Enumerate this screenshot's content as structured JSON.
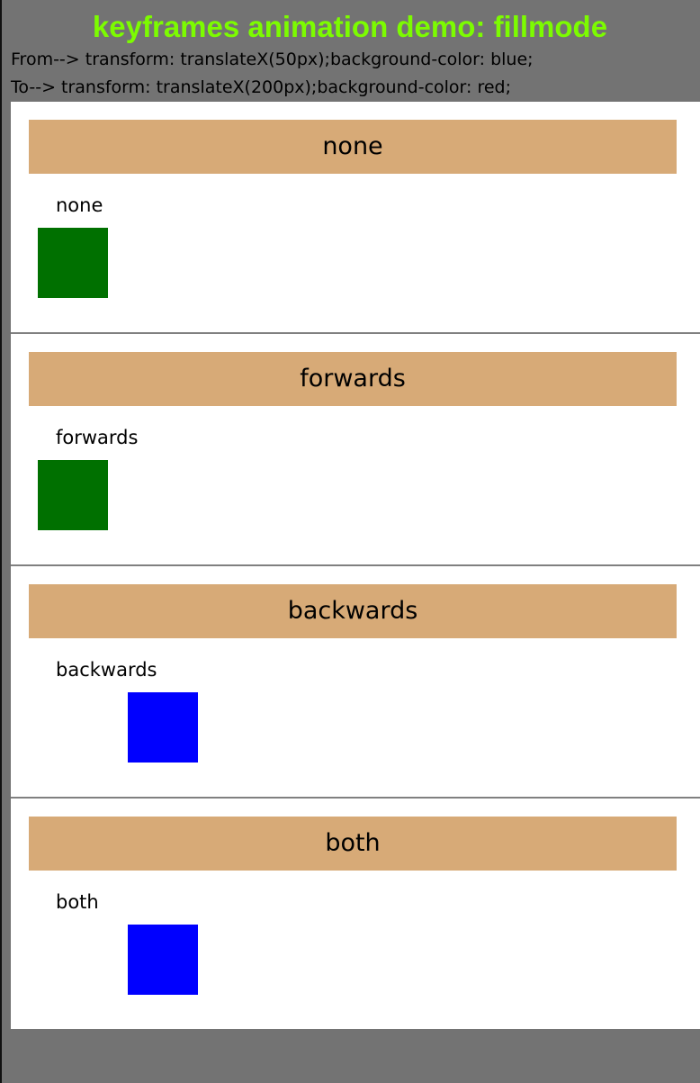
{
  "page": {
    "title": "keyframes animation demo: fillmode",
    "from_line": "From--> transform: translateX(50px);background-color: blue;",
    "to_line": "To--> transform: translateX(200px);background-color: red;"
  },
  "colors": {
    "background": "#737373",
    "title": "#7cfc00",
    "panel": "#ffffff",
    "header": "#d7aa77",
    "divider": "#808080",
    "green_box": "#007000",
    "blue_box": "#0000ff"
  },
  "sections": [
    {
      "header": "none",
      "label": "none",
      "box_color": "#007000"
    },
    {
      "header": "forwards",
      "label": "forwards",
      "box_color": "#007000"
    },
    {
      "header": "backwards",
      "label": "backwards",
      "box_color": "#0000ff"
    },
    {
      "header": "both",
      "label": "both",
      "box_color": "#0000ff"
    }
  ]
}
